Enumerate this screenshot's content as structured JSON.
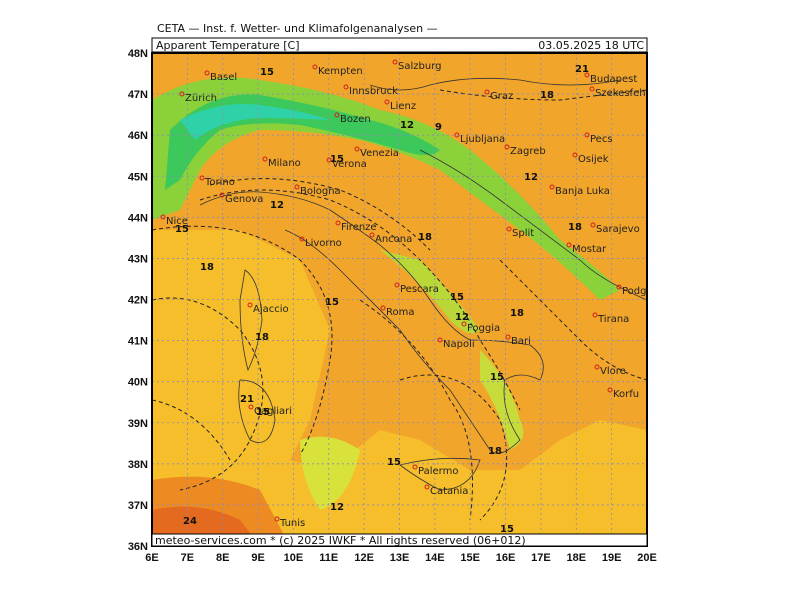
{
  "header": {
    "title": "CETA — Inst. f. Wetter- und Klimafolgenanalysen —",
    "field": "Apparent Temperature [C]",
    "date": "03.05.2025 18 UTC"
  },
  "footer": "meteo-services.com * (c) 2025 IWKF * All rights reserved (06+012)",
  "map": {
    "lon_labels": [
      "6E",
      "7E",
      "8E",
      "9E",
      "10E",
      "11E",
      "12E",
      "13E",
      "14E",
      "15E",
      "16E",
      "17E",
      "18E",
      "19E",
      "20E"
    ],
    "lat_labels": [
      "36N",
      "37N",
      "38N",
      "39N",
      "40N",
      "41N",
      "42N",
      "43N",
      "44N",
      "45N",
      "46N",
      "47N",
      "48N"
    ],
    "cities": [
      "Basel",
      "Kempten",
      "Salzburg",
      "Innsbruck",
      "Graz",
      "Budapest",
      "Szekesfeh",
      "Zürich",
      "Bozen",
      "Lienz",
      "Milano",
      "Verona",
      "Venezia",
      "Ljubljana",
      "Zagreb",
      "Pecs",
      "Osijek",
      "Torino",
      "Genova",
      "Bologna",
      "Banja Luka",
      "Nice",
      "Firenze",
      "Ancona",
      "Split",
      "Sarajevo",
      "Mostar",
      "Livorno",
      "Pescara",
      "Podgorica",
      "Ajaccio",
      "Roma",
      "Foggia",
      "Tirana",
      "Napoli",
      "Bari",
      "Vlore",
      "Cagliari",
      "Korfu",
      "Palermo",
      "Catania",
      "Tunis"
    ],
    "contour_labels": [
      "15",
      "21",
      "18",
      "9",
      "12",
      "15",
      "18",
      "12",
      "15",
      "18",
      "12",
      "15",
      "18",
      "15",
      "18",
      "12",
      "15",
      "18",
      "21",
      "15",
      "18",
      "12",
      "15",
      "15",
      "24"
    ]
  }
}
